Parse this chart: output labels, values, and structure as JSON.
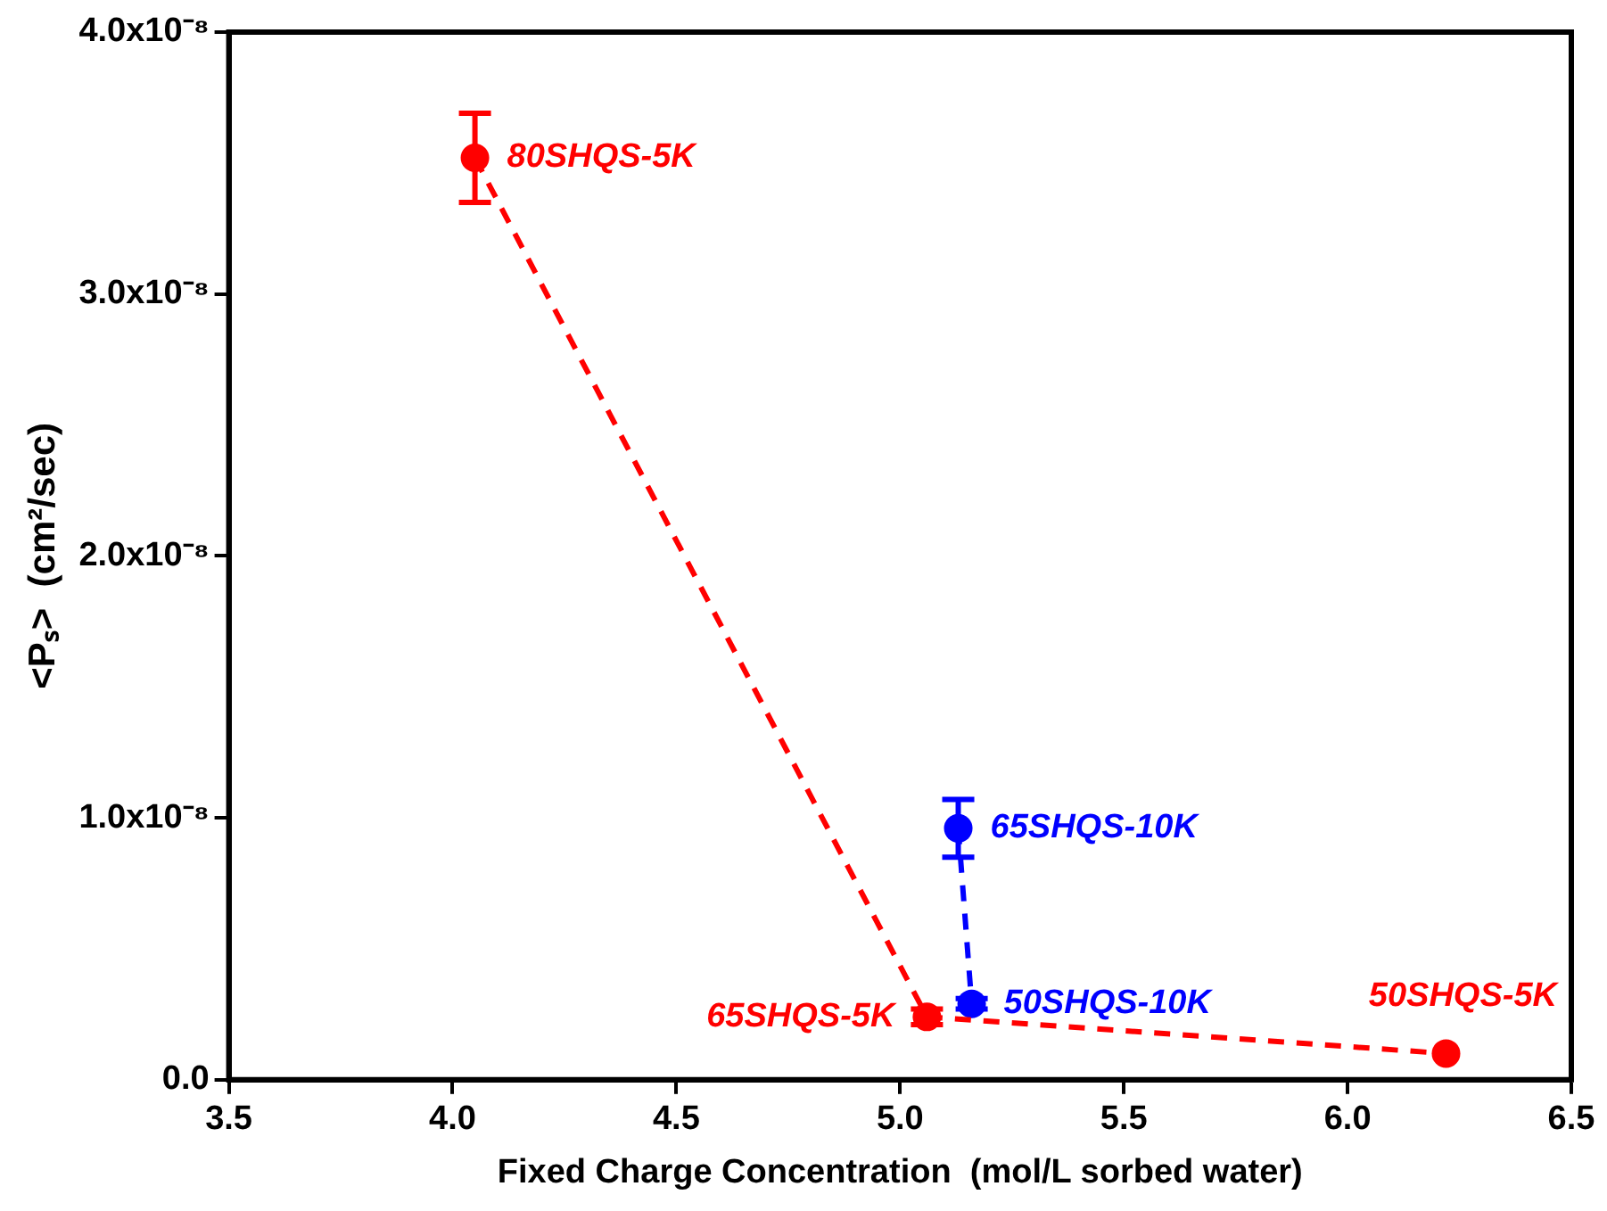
{
  "chart_data": {
    "type": "scatter",
    "xlabel": "Fixed Charge Concentration  (mol/L sorbed water)",
    "ylabel": "<Pₛ>  (cm²/sec)",
    "xlim": [
      3.5,
      6.5
    ],
    "xticks": [
      3.5,
      {
        "value": 4,
        "label": "4.0"
      },
      4.5,
      {
        "value": 5,
        "label": "5.0"
      },
      5.5,
      {
        "value": 6,
        "label": "6.0"
      },
      6.5
    ],
    "ylim": [
      0,
      4e-08
    ],
    "yticks": [
      {
        "value": 0,
        "label": "0.0"
      },
      {
        "value": 1e-08,
        "label": "1.0x10⁻⁸"
      },
      {
        "value": 2e-08,
        "label": "2.0x10⁻⁸"
      },
      {
        "value": 3e-08,
        "label": "3.0x10⁻⁸"
      },
      {
        "value": 4e-08,
        "label": "4.0x10⁻⁸"
      }
    ],
    "grid": false,
    "legend": false,
    "marker": "circle",
    "line_style": "dashed",
    "series": [
      {
        "color": "#ff0000",
        "x": [
          4.05,
          5.06,
          6.22
        ],
        "values": [
          3.52e-08,
          2.4e-09,
          1e-09
        ],
        "errors": [
          1.7e-09,
          3e-10,
          null
        ]
      },
      {
        "color": "#0000ff",
        "x": [
          5.13,
          5.16
        ],
        "values": [
          9.6e-09,
          2.9e-09
        ],
        "errors": [
          1.1e-09,
          2e-10
        ]
      }
    ],
    "annotations": [
      {
        "text": "80SHQS-5K",
        "x": 4.05,
        "y": 3.52e-08
      },
      {
        "text": "65SHQS-5K",
        "x": 5.06,
        "y": 2.4e-09
      },
      {
        "text": "50SHQS-5K",
        "x": 6.22,
        "y": 1e-09
      },
      {
        "text": "65SHQS-10K",
        "x": 5.13,
        "y": 9.6e-09
      },
      {
        "text": "50SHQS-10K",
        "x": 5.16,
        "y": 2.9e-09
      }
    ]
  }
}
